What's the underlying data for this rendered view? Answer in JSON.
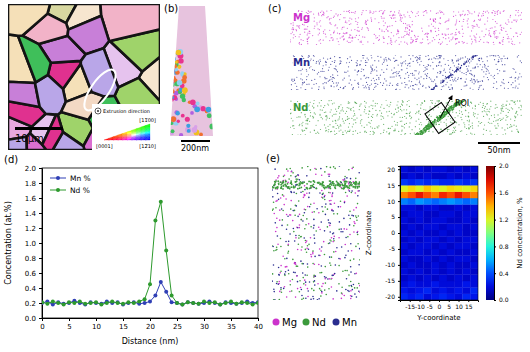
{
  "panels": {
    "labels": [
      "(a)",
      "(b)",
      "(c)",
      "(d)",
      "(e)"
    ],
    "a": {
      "scale_bar": "10µm",
      "inset_title": "Extrusion direction",
      "inset_labels": [
        "[11̅00]",
        "[0001]",
        "[12̅10]"
      ]
    },
    "b": {
      "scale_bar": "200nm"
    },
    "c": {
      "elements": [
        {
          "name": "Mg",
          "color": "#cc33cc"
        },
        {
          "name": "Mn",
          "color": "#2a2d8f"
        },
        {
          "name": "Nd",
          "color": "#3c9a3c"
        }
      ],
      "roi": "ROI",
      "scale_bar": "50nm"
    },
    "e": {
      "legend": [
        {
          "name": "Mg",
          "color": "#cc33cc"
        },
        {
          "name": "Nd",
          "color": "#3c9a3c"
        },
        {
          "name": "Mn",
          "color": "#2a2d8f"
        }
      ]
    }
  },
  "chart_data": [
    {
      "type": "line",
      "xlabel": "Distance (nm)",
      "ylabel": "Concentration (at.%)",
      "x": [
        0,
        1,
        2,
        3,
        4,
        5,
        6,
        7,
        8,
        9,
        10,
        11,
        12,
        13,
        14,
        15,
        16,
        17,
        18,
        19,
        20,
        21,
        22,
        23,
        24,
        25,
        26,
        27,
        28,
        29,
        30,
        31,
        32,
        33,
        34,
        35,
        36,
        37,
        38,
        39,
        40
      ],
      "series": [
        {
          "name": "Mn %",
          "color": "#2f3fb5",
          "marker": "circle",
          "values": [
            0.2,
            0.22,
            0.18,
            0.21,
            0.19,
            0.2,
            0.23,
            0.2,
            0.18,
            0.21,
            0.2,
            0.19,
            0.22,
            0.2,
            0.21,
            0.18,
            0.2,
            0.21,
            0.19,
            0.2,
            0.22,
            0.3,
            0.48,
            0.35,
            0.21,
            0.2,
            0.18,
            0.21,
            0.2,
            0.19,
            0.2,
            0.22,
            0.2,
            0.18,
            0.21,
            0.2,
            0.19,
            0.2,
            0.22,
            0.2,
            0.21
          ]
        },
        {
          "name": "Nd %",
          "color": "#2e9a2e",
          "marker": "circle",
          "values": [
            0.21,
            0.19,
            0.22,
            0.2,
            0.18,
            0.21,
            0.2,
            0.22,
            0.19,
            0.2,
            0.21,
            0.18,
            0.2,
            0.22,
            0.2,
            0.19,
            0.21,
            0.2,
            0.22,
            0.25,
            0.45,
            1.3,
            1.55,
            0.9,
            0.3,
            0.2,
            0.18,
            0.21,
            0.2,
            0.19,
            0.22,
            0.2,
            0.21,
            0.18,
            0.2,
            0.22,
            0.19,
            0.21,
            0.2,
            0.18,
            0.2
          ]
        }
      ],
      "xlim": [
        0,
        40
      ],
      "ylim": [
        0,
        2.0
      ],
      "xticks": [
        0,
        5,
        10,
        15,
        20,
        25,
        30,
        35,
        40
      ],
      "yticks": [
        {
          "value": 0,
          "label": "0.0"
        },
        {
          "value": 0.2,
          "label": "0.2"
        },
        {
          "value": 0.4,
          "label": "0.4"
        },
        {
          "value": 0.6,
          "label": "0.6"
        },
        {
          "value": 0.8,
          "label": "0.8"
        },
        {
          "value": 1.0,
          "label": "1.0"
        },
        {
          "value": 1.2,
          "label": "1.2"
        },
        {
          "value": 1.4,
          "label": "1.4"
        },
        {
          "value": 1.6,
          "label": "1.6"
        },
        {
          "value": 1.8,
          "label": "1.8"
        },
        {
          "value": 2.0,
          "label": "2.0"
        }
      ],
      "legend": "upper left"
    },
    {
      "type": "heatmap",
      "xlabel": "Y-coordinate",
      "ylabel": "Z-coordinate",
      "x": [
        -18,
        -14,
        -10,
        -6,
        -2,
        2,
        6,
        10,
        14,
        18
      ],
      "y": [
        -20,
        -18,
        -16,
        -14,
        -12,
        -10,
        -8,
        -6,
        -4,
        -2,
        0,
        2,
        4,
        6,
        8,
        10,
        12,
        14,
        16,
        18,
        20
      ],
      "cells": [
        [
          0.3,
          0.25,
          0.3,
          0.2,
          0.25,
          0.3,
          0.25,
          0.2,
          0.3,
          0.25
        ],
        [
          0.25,
          0.2,
          0.25,
          0.3,
          0.2,
          0.25,
          0.2,
          0.25,
          0.2,
          0.3
        ],
        [
          0.2,
          0.25,
          0.2,
          0.2,
          0.25,
          0.2,
          0.2,
          0.2,
          0.25,
          0.2
        ],
        [
          0.15,
          0.2,
          0.15,
          0.2,
          0.15,
          0.2,
          0.15,
          0.2,
          0.15,
          0.2
        ],
        [
          0.2,
          0.15,
          0.2,
          0.15,
          0.2,
          0.15,
          0.2,
          0.15,
          0.2,
          0.15
        ],
        [
          0.15,
          0.2,
          0.15,
          0.15,
          0.2,
          0.15,
          0.2,
          0.15,
          0.15,
          0.2
        ],
        [
          0.2,
          0.15,
          0.15,
          0.2,
          0.15,
          0.2,
          0.15,
          0.2,
          0.2,
          0.15
        ],
        [
          0.15,
          0.2,
          0.2,
          0.15,
          0.2,
          0.15,
          0.2,
          0.15,
          0.15,
          0.2
        ],
        [
          0.2,
          0.15,
          0.2,
          0.2,
          0.15,
          0.2,
          0.15,
          0.2,
          0.2,
          0.15
        ],
        [
          0.15,
          0.2,
          0.15,
          0.2,
          0.2,
          0.15,
          0.2,
          0.15,
          0.2,
          0.2
        ],
        [
          0.2,
          0.15,
          0.2,
          0.15,
          0.15,
          0.2,
          0.15,
          0.2,
          0.15,
          0.15
        ],
        [
          0.15,
          0.2,
          0.15,
          0.2,
          0.2,
          0.15,
          0.2,
          0.2,
          0.15,
          0.2
        ],
        [
          0.2,
          0.15,
          0.2,
          0.15,
          0.2,
          0.2,
          0.15,
          0.15,
          0.2,
          0.15
        ],
        [
          0.15,
          0.2,
          0.2,
          0.15,
          0.15,
          0.2,
          0.2,
          0.15,
          0.2,
          0.2
        ],
        [
          0.2,
          0.2,
          0.15,
          0.2,
          0.2,
          0.15,
          0.15,
          0.2,
          0.15,
          0.2
        ],
        [
          0.5,
          0.45,
          0.55,
          0.5,
          0.45,
          0.5,
          0.55,
          0.5,
          0.45,
          0.5
        ],
        [
          1.5,
          1.6,
          1.75,
          1.6,
          1.5,
          1.7,
          1.6,
          1.75,
          1.6,
          1.5
        ],
        [
          1.2,
          1.3,
          1.2,
          1.35,
          1.25,
          1.2,
          1.3,
          1.25,
          1.2,
          1.3
        ],
        [
          0.35,
          0.3,
          0.35,
          0.3,
          0.35,
          0.3,
          0.3,
          0.35,
          0.3,
          0.35
        ],
        [
          0.15,
          0.2,
          0.15,
          0.2,
          0.15,
          0.15,
          0.2,
          0.15,
          0.2,
          0.15
        ],
        [
          0.2,
          0.15,
          0.2,
          0.15,
          0.2,
          0.2,
          0.15,
          0.2,
          0.15,
          0.2
        ]
      ],
      "xlim": [
        -20,
        20
      ],
      "ylim": [
        -21,
        21
      ],
      "xticks": [
        -15,
        -10,
        -5,
        0,
        5,
        10,
        15
      ],
      "yticks": [
        -20,
        -15,
        -10,
        -5,
        0,
        5,
        10,
        15,
        20
      ],
      "colorbar_label": "Nd concentration, %",
      "colorbar_range": [
        0,
        2.0
      ],
      "colorbar_ticks": [
        {
          "value": 0,
          "label": "0.0"
        },
        {
          "value": 0.4,
          "label": "0.4"
        },
        {
          "value": 0.8,
          "label": "0.8"
        },
        {
          "value": 1.2,
          "label": "1.2"
        },
        {
          "value": 1.6,
          "label": "1.6"
        },
        {
          "value": 2.0,
          "label": "2.0"
        }
      ]
    }
  ]
}
